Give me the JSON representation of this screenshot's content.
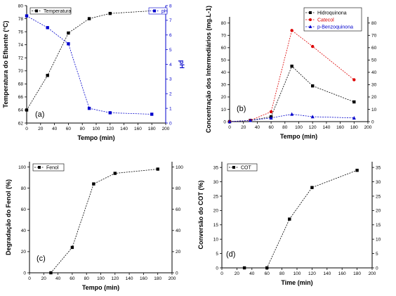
{
  "chart_data": [
    {
      "panel": "(a)",
      "type": "line",
      "xlabel": "Tempo (min)",
      "ylabel": "Temperatura do Efluente (°C)",
      "y2label": "pH",
      "xlim": [
        0,
        200
      ],
      "ylim": [
        62,
        80
      ],
      "y2lim": [
        0,
        8
      ],
      "xticks": [
        0,
        20,
        40,
        60,
        80,
        100,
        120,
        140,
        160,
        180,
        200
      ],
      "yticks": [
        62,
        64,
        66,
        68,
        70,
        72,
        74,
        76,
        78,
        80
      ],
      "y2ticks": [
        0,
        1,
        2,
        3,
        4,
        5,
        6,
        7,
        8
      ],
      "legend_placement": "top",
      "series": [
        {
          "name": "Temperatura",
          "axis": "left",
          "color": "#000000",
          "marker": "square",
          "x": [
            0,
            30,
            60,
            90,
            120,
            180
          ],
          "y": [
            64.0,
            69.3,
            75.8,
            78.0,
            78.8,
            79.2
          ]
        },
        {
          "name": "pH",
          "axis": "right",
          "color": "#0000cc",
          "marker": "square",
          "x": [
            0,
            30,
            60,
            90,
            120,
            180
          ],
          "y": [
            7.3,
            6.5,
            5.4,
            1.0,
            0.7,
            0.6
          ]
        }
      ]
    },
    {
      "panel": "(b)",
      "type": "line",
      "xlabel": "Tempo (min)",
      "ylabel": "Concentração dos Intermediários (mg.L-1)",
      "xlim": [
        0,
        200
      ],
      "ylim": [
        0,
        85
      ],
      "xticks": [
        0,
        20,
        40,
        60,
        80,
        100,
        120,
        140,
        160,
        180,
        200
      ],
      "yticks": [
        0,
        10,
        20,
        30,
        40,
        50,
        60,
        70,
        80
      ],
      "legend_placement": "top-right",
      "series": [
        {
          "name": "Hidroquinona",
          "color": "#000000",
          "marker": "square",
          "x": [
            0,
            30,
            60,
            90,
            120,
            180
          ],
          "y": [
            0,
            1,
            4,
            45,
            29,
            16
          ]
        },
        {
          "name": "Catecol",
          "color": "#dd0000",
          "marker": "circle",
          "x": [
            0,
            30,
            60,
            90,
            120,
            180
          ],
          "y": [
            0,
            1,
            8,
            74,
            61,
            34
          ]
        },
        {
          "name": "p-Benzoquinona",
          "color": "#0000cc",
          "marker": "triangle",
          "x": [
            0,
            30,
            60,
            90,
            120,
            180
          ],
          "y": [
            0,
            1,
            3,
            6,
            4,
            3
          ]
        }
      ]
    },
    {
      "panel": "(c)",
      "type": "line",
      "xlabel": "Tempo (min)",
      "ylabel": "Degradação do Fenol (%)",
      "xlim": [
        0,
        200
      ],
      "ylim": [
        0,
        105
      ],
      "xticks": [
        0,
        20,
        40,
        60,
        80,
        100,
        120,
        140,
        160,
        180,
        200
      ],
      "yticks": [
        0,
        20,
        40,
        60,
        80,
        100
      ],
      "legend_placement": "top-left",
      "series": [
        {
          "name": "Fenol",
          "color": "#000000",
          "marker": "square",
          "x": [
            30,
            60,
            90,
            120,
            180
          ],
          "y": [
            0,
            24,
            84,
            94,
            98
          ]
        }
      ]
    },
    {
      "panel": "(d)",
      "type": "line",
      "xlabel": "Time (min)",
      "ylabel": "Conversão do COT (%)",
      "xlim": [
        0,
        200
      ],
      "ylim": [
        0,
        37
      ],
      "xticks": [
        0,
        20,
        40,
        60,
        80,
        100,
        120,
        140,
        160,
        180,
        200
      ],
      "yticks": [
        0,
        5,
        10,
        15,
        20,
        25,
        30,
        35
      ],
      "legend_placement": "top-left",
      "series": [
        {
          "name": "COT",
          "color": "#000000",
          "marker": "square",
          "x": [
            30,
            60,
            90,
            120,
            180
          ],
          "y": [
            0,
            0,
            17,
            28,
            34
          ]
        }
      ]
    }
  ]
}
